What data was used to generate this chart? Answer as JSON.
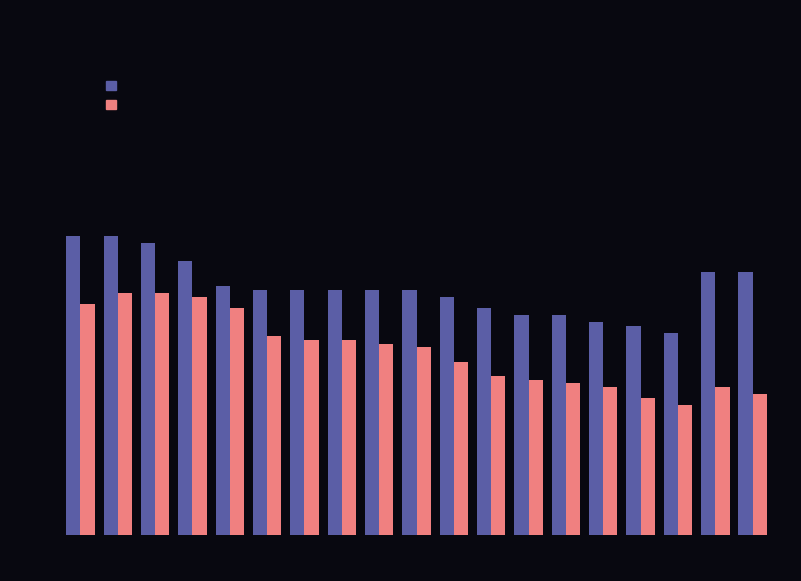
{
  "blue_values": [
    83,
    83,
    81,
    76,
    69,
    68,
    68,
    68,
    68,
    68,
    66,
    63,
    61,
    61,
    59,
    58,
    56,
    73,
    73
  ],
  "pink_values": [
    64,
    67,
    67,
    66,
    63,
    55,
    54,
    54,
    53,
    52,
    48,
    44,
    43,
    42,
    41,
    38,
    36,
    41,
    39
  ],
  "blue_color": "#5b5ea6",
  "pink_color": "#f08080",
  "background_color": "#080810",
  "legend_blue_label": " ",
  "legend_pink_label": " ",
  "ylim": [
    0,
    100
  ],
  "bar_width": 0.38,
  "n_groups": 19
}
